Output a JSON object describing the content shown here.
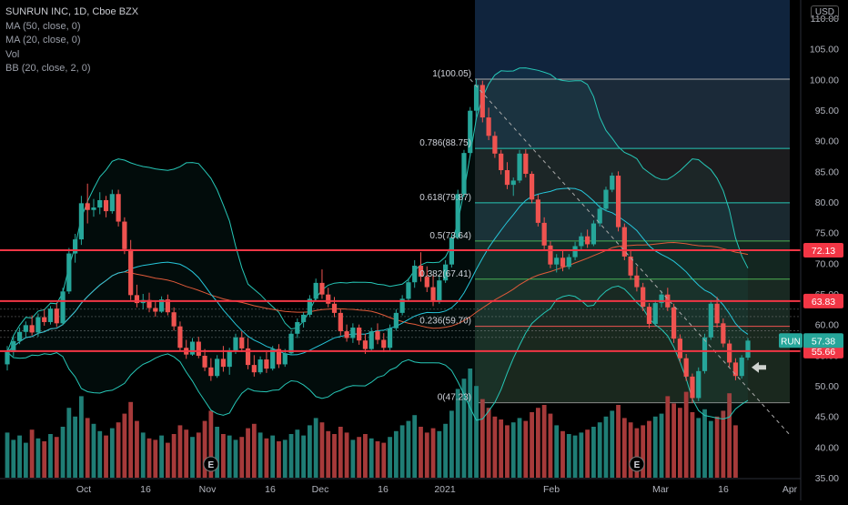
{
  "legend": {
    "title": "SUNRUN INC, 1D, Cboe BZX",
    "ma50": "MA (50, close, 0)",
    "ma20": "MA (20, close, 0)",
    "vol": "Vol",
    "bb": "BB (20, close, 2, 0)"
  },
  "currency_button": "USD",
  "colors": {
    "up": "#26a69a",
    "down": "#ef5350",
    "up_volume": "#1f7d75",
    "down_volume": "#a63a3a",
    "horizontal_line": "#f23645",
    "ticker_badge": "#26a69a",
    "level_badge": "#f23645",
    "bollinger": "#26c6b6",
    "ma50": "#e05a3a",
    "ma20": "#26c6da"
  },
  "chart_data": {
    "type": "candlestick",
    "ticker": "RUN",
    "last_price": 57.38,
    "y_axis": {
      "min": 35,
      "max": 110,
      "ticks": [
        "35.00",
        "40.00",
        "45.00",
        "50.00",
        "55.00",
        "60.00",
        "65.00",
        "70.00",
        "75.00",
        "80.00",
        "85.00",
        "90.00",
        "95.00",
        "100.00",
        "105.00",
        "110.00"
      ]
    },
    "x_axis": {
      "labels": [
        "Oct",
        "16",
        "Nov",
        "16",
        "Dec",
        "16",
        "2021",
        "Feb",
        "Mar",
        "16",
        "Apr"
      ]
    },
    "horizontal_levels": [
      72.13,
      63.83,
      55.66
    ],
    "fibonacci": {
      "levels": [
        {
          "label": "1(100.05)",
          "ratio": 1,
          "price": 100.05
        },
        {
          "label": "0.786(88.75)",
          "ratio": 0.786,
          "price": 88.75
        },
        {
          "label": "0.618(79.87)",
          "ratio": 0.618,
          "price": 79.87
        },
        {
          "label": "0.5(73.64)",
          "ratio": 0.5,
          "price": 73.64
        },
        {
          "label": "0.382(67.41)",
          "ratio": 0.382,
          "price": 67.41
        },
        {
          "label": "0.236(59.70)",
          "ratio": 0.236,
          "price": 59.7
        },
        {
          "label": "0(47.23)",
          "ratio": 0,
          "price": 47.23
        }
      ]
    },
    "earnings_markers": [
      "E",
      "E"
    ],
    "candles": [
      [
        53.5,
        56.5,
        52.5,
        55.5
      ],
      [
        55.5,
        58.0,
        54.8,
        57.3
      ],
      [
        57.3,
        59.5,
        56.8,
        58.8
      ],
      [
        58.8,
        60.5,
        57.9,
        59.9
      ],
      [
        59.9,
        61.5,
        58.2,
        58.7
      ],
      [
        58.7,
        61.8,
        58.0,
        61.2
      ],
      [
        61.2,
        62.5,
        59.8,
        60.4
      ],
      [
        60.4,
        63.0,
        60.0,
        62.6
      ],
      [
        62.6,
        63.5,
        59.6,
        60.2
      ],
      [
        60.2,
        66.0,
        59.9,
        65.4
      ],
      [
        65.4,
        72.5,
        65.0,
        71.6
      ],
      [
        71.6,
        74.8,
        70.1,
        73.9
      ],
      [
        73.9,
        81.0,
        73.0,
        79.8
      ],
      [
        79.8,
        83.0,
        76.5,
        78.7
      ],
      [
        78.7,
        80.5,
        77.6,
        79.1
      ],
      [
        79.1,
        81.6,
        78.0,
        80.3
      ],
      [
        80.3,
        81.0,
        77.5,
        78.5
      ],
      [
        78.5,
        82.0,
        78.1,
        81.3
      ],
      [
        81.3,
        82.0,
        76.0,
        76.8
      ],
      [
        76.8,
        77.5,
        71.5,
        72.3
      ],
      [
        72.3,
        73.8,
        64.0,
        64.8
      ],
      [
        64.8,
        66.5,
        62.8,
        63.5
      ],
      [
        63.5,
        65.0,
        62.5,
        64.0
      ],
      [
        64.0,
        65.2,
        62.0,
        62.7
      ],
      [
        62.7,
        63.8,
        61.3,
        62.1
      ],
      [
        62.1,
        64.6,
        61.9,
        64.1
      ],
      [
        64.1,
        64.9,
        61.5,
        62.0
      ],
      [
        62.0,
        62.8,
        59.0,
        59.7
      ],
      [
        59.7,
        60.5,
        55.6,
        56.2
      ],
      [
        56.2,
        57.5,
        54.4,
        55.1
      ],
      [
        55.1,
        57.8,
        54.9,
        57.2
      ],
      [
        57.2,
        58.0,
        54.5,
        54.9
      ],
      [
        54.9,
        56.0,
        52.4,
        53.0
      ],
      [
        53.0,
        54.5,
        50.8,
        51.6
      ],
      [
        51.6,
        55.0,
        51.3,
        54.4
      ],
      [
        54.4,
        56.5,
        52.3,
        53.1
      ],
      [
        53.1,
        56.2,
        51.8,
        55.8
      ],
      [
        55.8,
        58.5,
        55.2,
        57.9
      ],
      [
        57.9,
        58.9,
        55.5,
        56.1
      ],
      [
        56.1,
        57.8,
        52.7,
        53.4
      ],
      [
        53.4,
        55.0,
        51.5,
        52.2
      ],
      [
        52.2,
        54.8,
        51.9,
        54.3
      ],
      [
        54.3,
        55.5,
        52.1,
        52.8
      ],
      [
        52.8,
        56.5,
        52.5,
        56.0
      ],
      [
        56.0,
        56.8,
        52.9,
        53.5
      ],
      [
        53.5,
        56.0,
        53.1,
        55.3
      ],
      [
        55.3,
        59.0,
        55.0,
        58.5
      ],
      [
        58.5,
        61.0,
        57.8,
        60.4
      ],
      [
        60.4,
        62.0,
        59.5,
        61.6
      ],
      [
        61.6,
        64.8,
        61.2,
        64.2
      ],
      [
        64.2,
        67.5,
        63.8,
        66.8
      ],
      [
        66.8,
        69.0,
        64.2,
        64.9
      ],
      [
        64.9,
        66.0,
        62.8,
        63.4
      ],
      [
        63.4,
        64.5,
        61.2,
        61.9
      ],
      [
        61.9,
        62.5,
        58.2,
        58.9
      ],
      [
        58.9,
        60.0,
        57.2,
        57.8
      ],
      [
        57.8,
        60.2,
        57.0,
        59.5
      ],
      [
        59.5,
        60.0,
        56.7,
        57.4
      ],
      [
        57.4,
        58.5,
        55.2,
        56.0
      ],
      [
        56.0,
        59.5,
        55.7,
        58.9
      ],
      [
        58.9,
        60.2,
        56.8,
        57.5
      ],
      [
        57.5,
        58.6,
        55.5,
        56.2
      ],
      [
        56.2,
        60.0,
        55.8,
        59.4
      ],
      [
        59.4,
        62.5,
        59.0,
        61.9
      ],
      [
        61.9,
        64.8,
        61.5,
        64.2
      ],
      [
        64.2,
        67.6,
        63.8,
        66.9
      ],
      [
        66.9,
        70.5,
        66.0,
        69.6
      ],
      [
        69.6,
        71.8,
        67.0,
        67.8
      ],
      [
        67.8,
        69.5,
        65.3,
        66.1
      ],
      [
        66.1,
        68.2,
        63.0,
        63.7
      ],
      [
        63.7,
        68.0,
        63.4,
        67.2
      ],
      [
        67.2,
        70.5,
        66.8,
        69.8
      ],
      [
        69.8,
        74.8,
        69.3,
        74.2
      ],
      [
        74.2,
        82.0,
        73.9,
        81.3
      ],
      [
        81.3,
        88.5,
        80.9,
        88.0
      ],
      [
        88.0,
        95.5,
        87.5,
        94.9
      ],
      [
        94.9,
        100.05,
        93.8,
        99.1
      ],
      [
        99.1,
        99.8,
        93.0,
        93.8
      ],
      [
        93.8,
        95.4,
        90.1,
        90.8
      ],
      [
        90.8,
        91.5,
        87.2,
        87.9
      ],
      [
        87.9,
        88.5,
        84.5,
        85.2
      ],
      [
        85.2,
        86.5,
        82.1,
        82.8
      ],
      [
        82.8,
        84.0,
        81.0,
        83.5
      ],
      [
        83.5,
        88.5,
        83.1,
        87.9
      ],
      [
        87.9,
        88.6,
        84.0,
        84.6
      ],
      [
        84.6,
        85.0,
        79.8,
        80.4
      ],
      [
        80.4,
        81.2,
        76.0,
        76.6
      ],
      [
        76.6,
        77.5,
        72.3,
        72.9
      ],
      [
        72.9,
        73.6,
        69.2,
        69.8
      ],
      [
        69.8,
        71.5,
        68.5,
        70.9
      ],
      [
        70.9,
        72.0,
        68.7,
        69.4
      ],
      [
        69.4,
        71.5,
        69.0,
        71.0
      ],
      [
        71.0,
        73.5,
        70.5,
        72.8
      ],
      [
        72.8,
        75.0,
        72.2,
        74.4
      ],
      [
        74.4,
        75.5,
        72.5,
        73.1
      ],
      [
        73.1,
        77.0,
        72.8,
        76.5
      ],
      [
        76.5,
        79.5,
        76.0,
        78.9
      ],
      [
        78.9,
        82.5,
        78.5,
        82.0
      ],
      [
        82.0,
        84.8,
        81.6,
        84.3
      ],
      [
        84.3,
        85.0,
        75.2,
        75.9
      ],
      [
        75.9,
        76.5,
        70.5,
        71.1
      ],
      [
        71.1,
        72.0,
        67.3,
        68.0
      ],
      [
        68.0,
        69.5,
        65.4,
        66.1
      ],
      [
        66.1,
        66.8,
        62.2,
        62.9
      ],
      [
        62.9,
        63.5,
        59.4,
        60.1
      ],
      [
        60.1,
        64.0,
        59.7,
        63.5
      ],
      [
        63.5,
        65.5,
        62.8,
        64.9
      ],
      [
        64.9,
        66.0,
        62.2,
        62.8
      ],
      [
        62.8,
        63.4,
        57.0,
        57.7
      ],
      [
        57.7,
        58.4,
        53.8,
        54.5
      ],
      [
        54.5,
        55.2,
        50.8,
        51.5
      ],
      [
        51.5,
        52.0,
        47.23,
        48.0
      ],
      [
        48.0,
        53.0,
        47.5,
        52.4
      ],
      [
        52.4,
        58.5,
        52.0,
        57.9
      ],
      [
        57.9,
        64.0,
        57.5,
        63.4
      ],
      [
        63.4,
        64.5,
        59.5,
        60.2
      ],
      [
        60.2,
        61.0,
        56.3,
        56.9
      ],
      [
        56.9,
        57.5,
        53.1,
        53.8
      ],
      [
        53.8,
        54.5,
        50.9,
        51.6
      ],
      [
        51.6,
        55.0,
        51.2,
        54.6
      ],
      [
        54.6,
        57.8,
        54.2,
        57.38
      ]
    ],
    "volume": [
      3.1,
      2.6,
      2.9,
      2.4,
      3.3,
      2.7,
      2.5,
      3.0,
      2.8,
      3.5,
      4.8,
      4.2,
      5.6,
      4.1,
      3.7,
      3.2,
      2.9,
      3.4,
      3.8,
      4.4,
      5.2,
      3.9,
      3.1,
      2.7,
      2.6,
      2.9,
      2.4,
      3.0,
      3.6,
      3.3,
      2.8,
      3.1,
      3.9,
      4.6,
      3.5,
      3.0,
      2.9,
      2.6,
      2.8,
      3.4,
      3.7,
      3.1,
      2.7,
      2.9,
      2.5,
      2.6,
      3.0,
      3.3,
      2.9,
      3.6,
      4.1,
      3.8,
      3.2,
      3.0,
      3.5,
      3.1,
      2.6,
      2.8,
      3.0,
      2.7,
      2.5,
      2.4,
      2.8,
      3.2,
      3.6,
      3.9,
      4.3,
      3.5,
      3.1,
      3.4,
      3.2,
      3.7,
      4.6,
      6.1,
      6.8,
      7.5,
      6.3,
      5.4,
      4.8,
      4.2,
      4.0,
      3.6,
      3.8,
      4.1,
      3.9,
      4.5,
      4.8,
      5.0,
      4.4,
      3.6,
      3.2,
      3.0,
      2.9,
      3.1,
      3.3,
      3.5,
      3.8,
      4.2,
      4.6,
      5.0,
      4.1,
      3.8,
      3.4,
      3.6,
      3.9,
      4.2,
      4.4,
      5.6,
      5.1,
      4.8,
      5.9,
      4.5,
      4.1,
      4.7,
      3.9,
      4.2,
      4.6,
      5.8,
      3.6
    ]
  }
}
